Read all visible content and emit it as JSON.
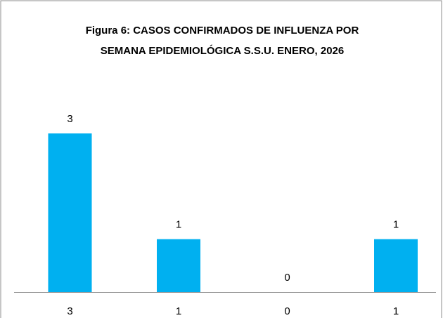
{
  "chart_data": {
    "type": "bar",
    "title": [
      "Figura 6: CASOS CONFIRMADOS DE INFLUENZA POR",
      "SEMANA EPIDEMIOLÓGICA S.S.U. ENERO, 2026"
    ],
    "categories": [
      "3",
      "1",
      "0",
      "1"
    ],
    "values": [
      3,
      1,
      0,
      1
    ],
    "color": "#00b0f0"
  }
}
